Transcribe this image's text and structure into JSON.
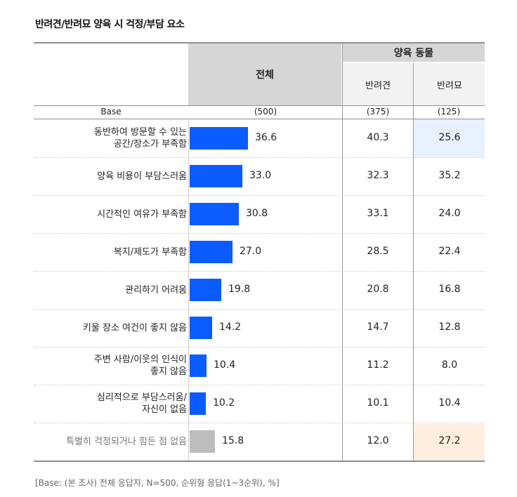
{
  "title": "반려견/반려묘 양육 시 걱정/부담 요소",
  "headers": {
    "total": "전체",
    "group": "양육 동물",
    "dog": "반려견",
    "cat": "반려묘"
  },
  "base": {
    "label": "Base",
    "total": "(500)",
    "dog": "(375)",
    "cat": "(125)"
  },
  "chart_data": {
    "type": "bar",
    "title": "반려견/반려묘 양육 시 걱정/부담 요소",
    "categories": [
      "동반하여 방문할 수 있는 공간/장소가 부족함",
      "양육 비용이 부담스러움",
      "시간적인 여유가 부족함",
      "복지/제도가 부족함",
      "관리하기 어려움",
      "키울 장소 여건이 좋지 않음",
      "주변 사람/이웃의 인식이 좋지 않음",
      "심리적으로 부담스러움/자신이 없음",
      "특별히 걱정되거나 힘든 점 없음"
    ],
    "series": [
      {
        "name": "전체",
        "values": [
          36.6,
          33.0,
          30.8,
          27.0,
          19.8,
          14.2,
          10.4,
          10.2,
          15.8
        ]
      },
      {
        "name": "반려견",
        "values": [
          40.3,
          32.3,
          33.1,
          28.5,
          20.8,
          14.7,
          11.2,
          10.1,
          12.0
        ]
      },
      {
        "name": "반려묘",
        "values": [
          25.6,
          35.2,
          24.0,
          22.4,
          16.8,
          12.8,
          8.0,
          10.4,
          27.2
        ]
      }
    ],
    "colors": {
      "bar": "#0a5cff",
      "bar_none": "#bdbdbd",
      "highlight_low": "#e8f1ff",
      "highlight_high": "#fdeede"
    }
  },
  "rows": [
    {
      "label_lines": [
        "동반하여 방문할 수 있는",
        "공간/장소가 부족함"
      ],
      "total": "36.6",
      "dog": "40.3",
      "cat": "25.6"
    },
    {
      "label_lines": [
        "양육 비용이 부담스러움"
      ],
      "total": "33.0",
      "dog": "32.3",
      "cat": "35.2"
    },
    {
      "label_lines": [
        "시간적인 여유가 부족함"
      ],
      "total": "30.8",
      "dog": "33.1",
      "cat": "24.0"
    },
    {
      "label_lines": [
        "복지/제도가 부족함"
      ],
      "total": "27.0",
      "dog": "28.5",
      "cat": "22.4"
    },
    {
      "label_lines": [
        "관리하기 어려움"
      ],
      "total": "19.8",
      "dog": "20.8",
      "cat": "16.8"
    },
    {
      "label_lines": [
        "키울 장소 여건이 좋지 않음"
      ],
      "total": "14.2",
      "dog": "14.7",
      "cat": "12.8"
    },
    {
      "label_lines": [
        "주변 사람/이웃의 인식이",
        "좋지 않음"
      ],
      "total": "10.4",
      "dog": "11.2",
      "cat": "8.0"
    },
    {
      "label_lines": [
        "심리적으로 부담스러움/",
        "자신이 없음"
      ],
      "total": "10.2",
      "dog": "10.1",
      "cat": "10.4"
    },
    {
      "label_lines": [
        "특별히 걱정되거나 힘든 점 없음"
      ],
      "total": "15.8",
      "dog": "12.0",
      "cat": "27.2",
      "muted": true
    }
  ],
  "note": "[Base: (본 조사) 전체 응답자, N=500, 순위형 응답(1~3순위), %]"
}
